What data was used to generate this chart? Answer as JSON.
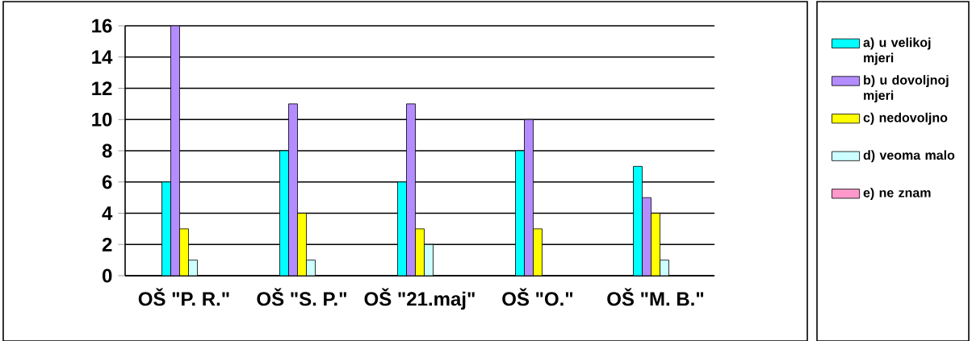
{
  "chart_data": {
    "type": "bar",
    "categories": [
      "OŠ \"P. R.\"",
      "OŠ \"S. P.\"",
      "OŠ \"21.maj\"",
      "OŠ \"O.\"",
      "OŠ \"M. B.\""
    ],
    "series": [
      {
        "name": "a) u velikoj mjeri",
        "color": "#00ffff",
        "values": [
          6,
          8,
          6,
          8,
          7
        ]
      },
      {
        "name": "b) u dovoljnoj mjeri",
        "color": "#b38cff",
        "values": [
          16,
          11,
          11,
          10,
          5
        ]
      },
      {
        "name": "c) nedovoljno",
        "color": "#ffff00",
        "values": [
          3,
          4,
          3,
          3,
          4
        ]
      },
      {
        "name": "d) veoma malo",
        "color": "#ccffff",
        "values": [
          1,
          1,
          2,
          0,
          1
        ]
      },
      {
        "name": "e) ne znam",
        "color": "#ff99cc",
        "values": [
          0,
          0,
          0,
          0,
          0
        ]
      }
    ],
    "ylim": [
      0,
      16
    ],
    "yticks": [
      0,
      2,
      4,
      6,
      8,
      10,
      12,
      14,
      16
    ],
    "grid": "y",
    "legend": "right"
  }
}
